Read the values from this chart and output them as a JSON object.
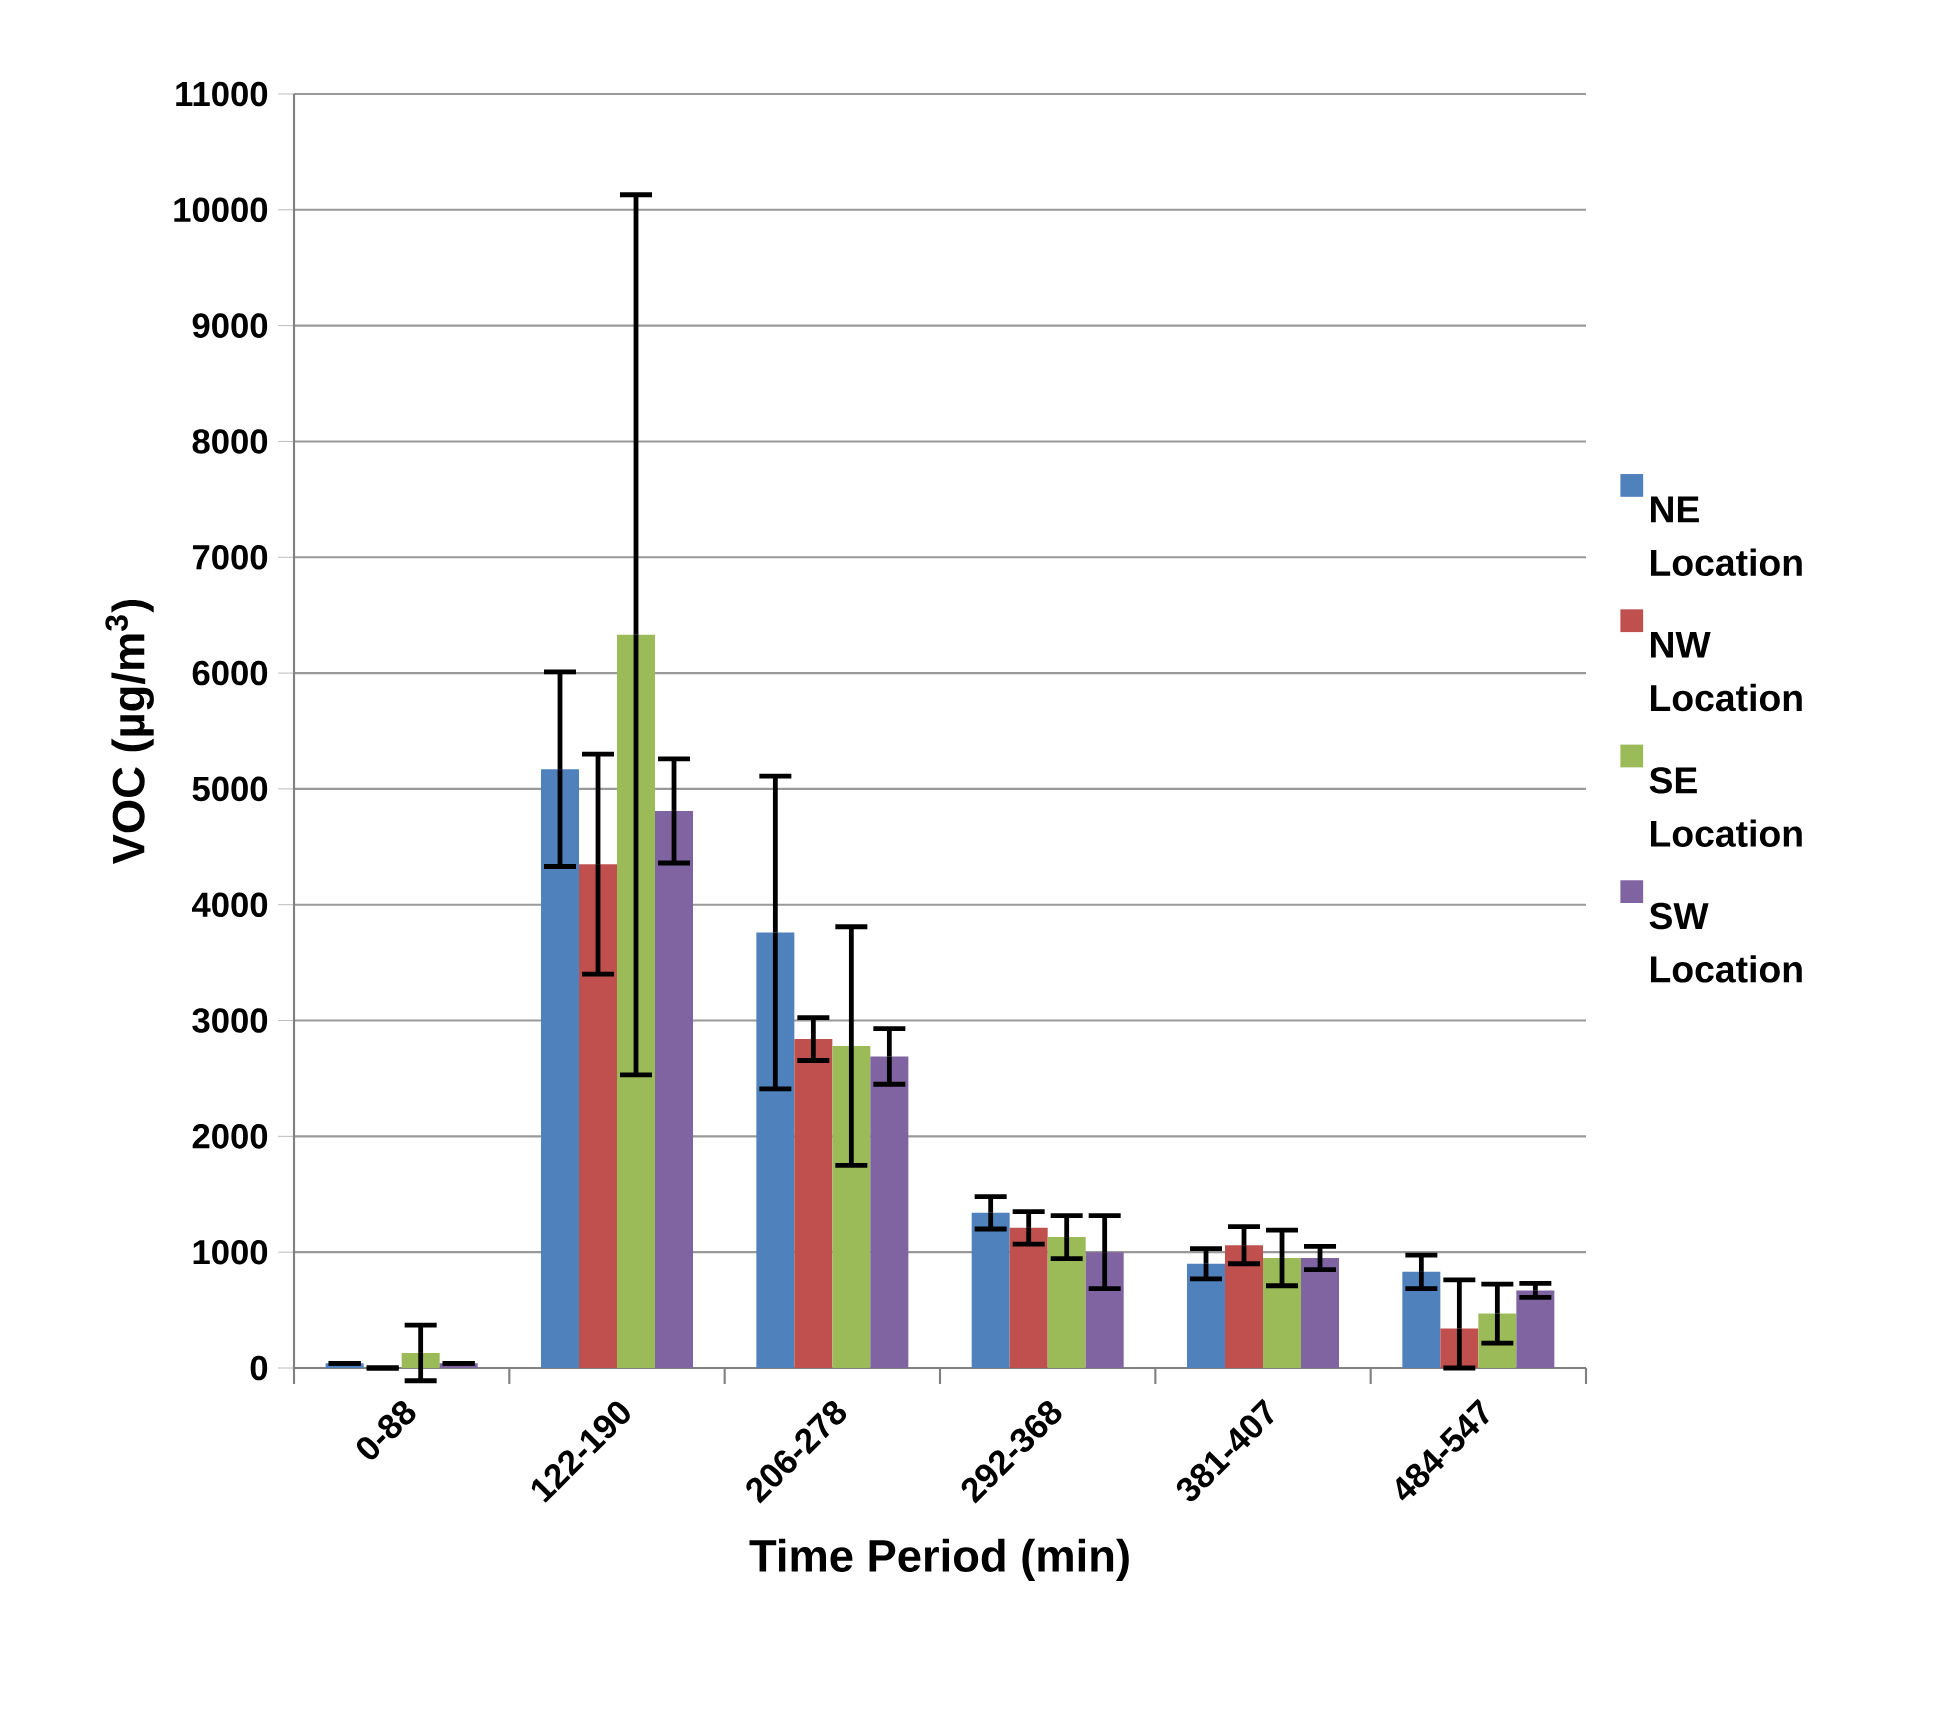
{
  "chart_data": {
    "type": "bar",
    "xlabel": "Time Period (min)",
    "ylabel": "VOC (µg/m$^{3}$)",
    "categories": [
      "0-88",
      "122-190",
      "206-278",
      "292-368",
      "381-407",
      "484-547"
    ],
    "series": [
      {
        "name": "NE Location",
        "color": "#4f81bd",
        "values": [
          40,
          5170,
          3760,
          1340,
          900,
          830
        ],
        "errors": [
          null,
          840,
          1350,
          140,
          130,
          145
        ]
      },
      {
        "name": "NW Location",
        "color": "#c0504d",
        "values": [
          0,
          4350,
          2840,
          1210,
          1060,
          340
        ],
        "errors": [
          null,
          950,
          185,
          140,
          160,
          [
            0,
            760
          ]
        ]
      },
      {
        "name": "SE Location",
        "color": "#9bbb59",
        "values": [
          130,
          6330,
          2780,
          1130,
          950,
          470
        ],
        "errors": [
          240,
          3800,
          1030,
          185,
          240,
          255
        ]
      },
      {
        "name": "SW Location",
        "color": "#8064a2",
        "values": [
          40,
          4810,
          2690,
          1000,
          950,
          670
        ],
        "errors": [
          null,
          450,
          240,
          315,
          100,
          60
        ]
      }
    ],
    "ylim": [
      0,
      11000
    ],
    "yticks": [
      0,
      1000,
      2000,
      3000,
      4000,
      5000,
      6000,
      7000,
      8000,
      9000,
      10000,
      11000
    ],
    "grid": "y",
    "legend": "right"
  }
}
